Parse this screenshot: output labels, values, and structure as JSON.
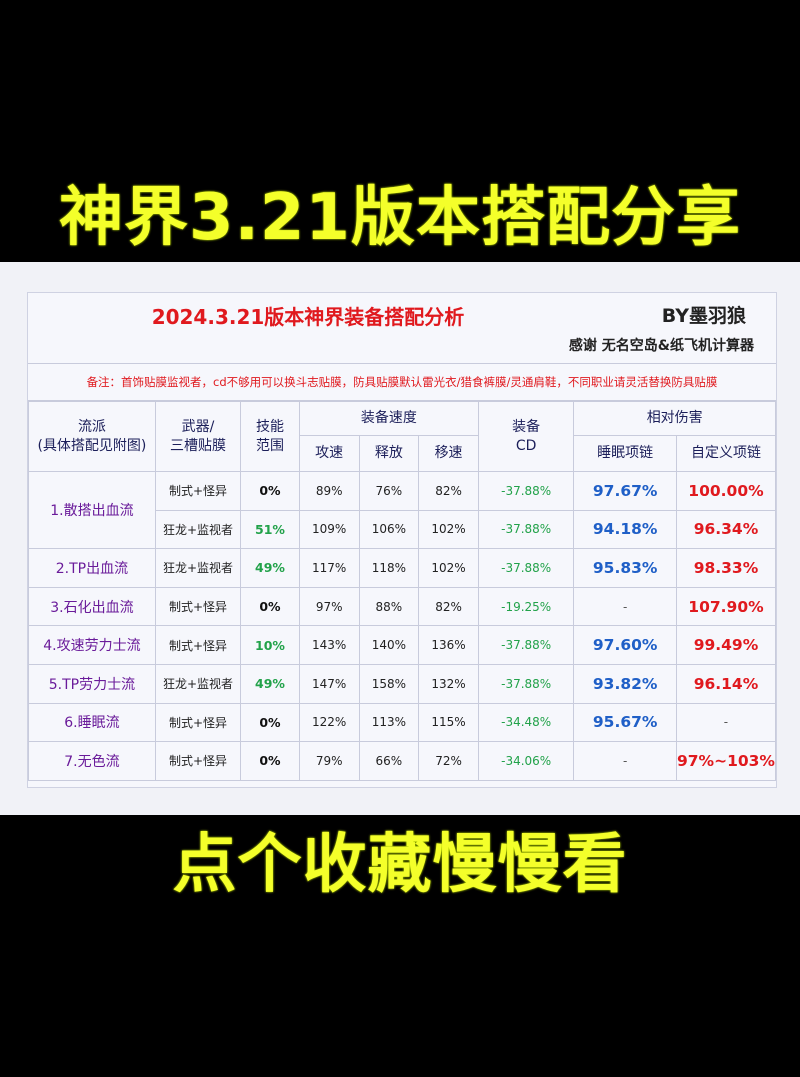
{
  "top_title": "神界3.21版本搭配分享",
  "bottom_title": "点个收藏慢慢看",
  "sheet": {
    "title": "2024.3.21版本神界装备搭配分析",
    "author": "BY墨羽狼",
    "thanks": "感谢 无名空岛&纸飞机计算器",
    "note": "备注：首饰贴膜监视者，cd不够用可以换斗志贴膜，防具贴膜默认雷光衣/猎食裤膜/灵通肩鞋，不同职业请灵活替换防具贴膜"
  },
  "headers": {
    "style": "流派\n(具体搭配见附图)",
    "weapon": "武器/\n三槽贴膜",
    "range": "技能\n范围",
    "speed": "装备速度",
    "atk": "攻速",
    "cast": "释放",
    "move": "移速",
    "cd": "装备\nCD",
    "damage": "相对伤害",
    "sleep": "睡眠项链",
    "custom": "自定义项链"
  },
  "colors": {
    "range_green": "#22a24a",
    "range_black": "#111111"
  },
  "rows": [
    {
      "style": "1.散搭出血流",
      "weapon": "制式+怪异",
      "range": "0%",
      "range_color": "black",
      "atk": "89%",
      "cast": "76%",
      "move": "82%",
      "cd": "-37.88%",
      "sleep": "97.67%",
      "custom": "100.00%"
    },
    {
      "weapon": "狂龙+监视者",
      "range": "51%",
      "range_color": "green",
      "atk": "109%",
      "cast": "106%",
      "move": "102%",
      "cd": "-37.88%",
      "sleep": "94.18%",
      "custom": "96.34%"
    },
    {
      "style": "2.TP出血流",
      "weapon": "狂龙+监视者",
      "range": "49%",
      "range_color": "green",
      "atk": "117%",
      "cast": "118%",
      "move": "102%",
      "cd": "-37.88%",
      "sleep": "95.83%",
      "custom": "98.33%"
    },
    {
      "style": "3.石化出血流",
      "weapon": "制式+怪异",
      "range": "0%",
      "range_color": "black",
      "atk": "97%",
      "cast": "88%",
      "move": "82%",
      "cd": "-19.25%",
      "sleep": "-",
      "custom": "107.90%"
    },
    {
      "style": "4.攻速劳力士流",
      "weapon": "制式+怪异",
      "range": "10%",
      "range_color": "green",
      "atk": "143%",
      "cast": "140%",
      "move": "136%",
      "cd": "-37.88%",
      "sleep": "97.60%",
      "custom": "99.49%"
    },
    {
      "style": "5.TP劳力士流",
      "weapon": "狂龙+监视者",
      "range": "49%",
      "range_color": "green",
      "atk": "147%",
      "cast": "158%",
      "move": "132%",
      "cd": "-37.88%",
      "sleep": "93.82%",
      "custom": "96.14%"
    },
    {
      "style": "6.睡眠流",
      "weapon": "制式+怪异",
      "range": "0%",
      "range_color": "black",
      "atk": "122%",
      "cast": "113%",
      "move": "115%",
      "cd": "-34.48%",
      "sleep": "95.67%",
      "custom": "-"
    },
    {
      "style": "7.无色流",
      "weapon": "制式+怪异",
      "range": "0%",
      "range_color": "black",
      "atk": "79%",
      "cast": "66%",
      "move": "72%",
      "cd": "-34.06%",
      "sleep": "-",
      "custom": "97%~103%"
    }
  ]
}
